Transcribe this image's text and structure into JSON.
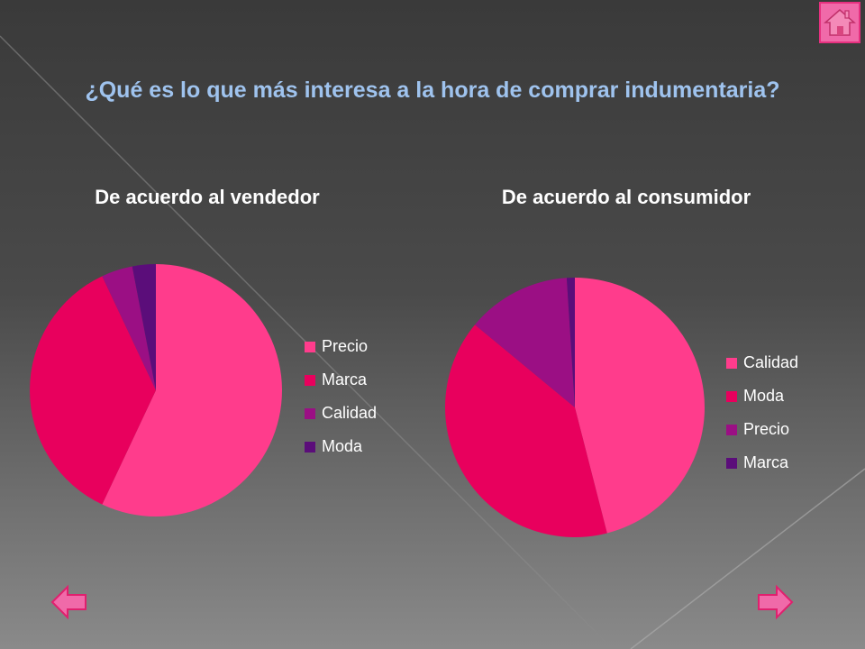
{
  "title": "¿Qué es lo que más interesa a la hora de comprar indumentaria?",
  "colors": {
    "pink": "#ff3c8c",
    "crimson": "#e8005d",
    "purple": "#9b0f84",
    "violet": "#5b0d7a",
    "title": "#9fc3ee"
  },
  "nav": {
    "home_icon": "home-icon",
    "prev_icon": "left-arrow-icon",
    "next_icon": "right-arrow-icon"
  },
  "chart_data": [
    {
      "type": "pie",
      "title": "De acuerdo al vendedor",
      "legend_position": "right",
      "categories": [
        "Precio",
        "Marca",
        "Calidad",
        "Moda"
      ],
      "values": [
        57,
        36,
        4,
        3
      ],
      "colors": [
        "#ff3c8c",
        "#e8005d",
        "#9b0f84",
        "#5b0d7a"
      ]
    },
    {
      "type": "pie",
      "title": "De acuerdo al consumidor",
      "legend_position": "right",
      "categories": [
        "Calidad",
        "Moda",
        "Precio",
        "Marca"
      ],
      "values": [
        46,
        40,
        13,
        1
      ],
      "colors": [
        "#ff3c8c",
        "#e8005d",
        "#9b0f84",
        "#5b0d7a"
      ]
    }
  ]
}
